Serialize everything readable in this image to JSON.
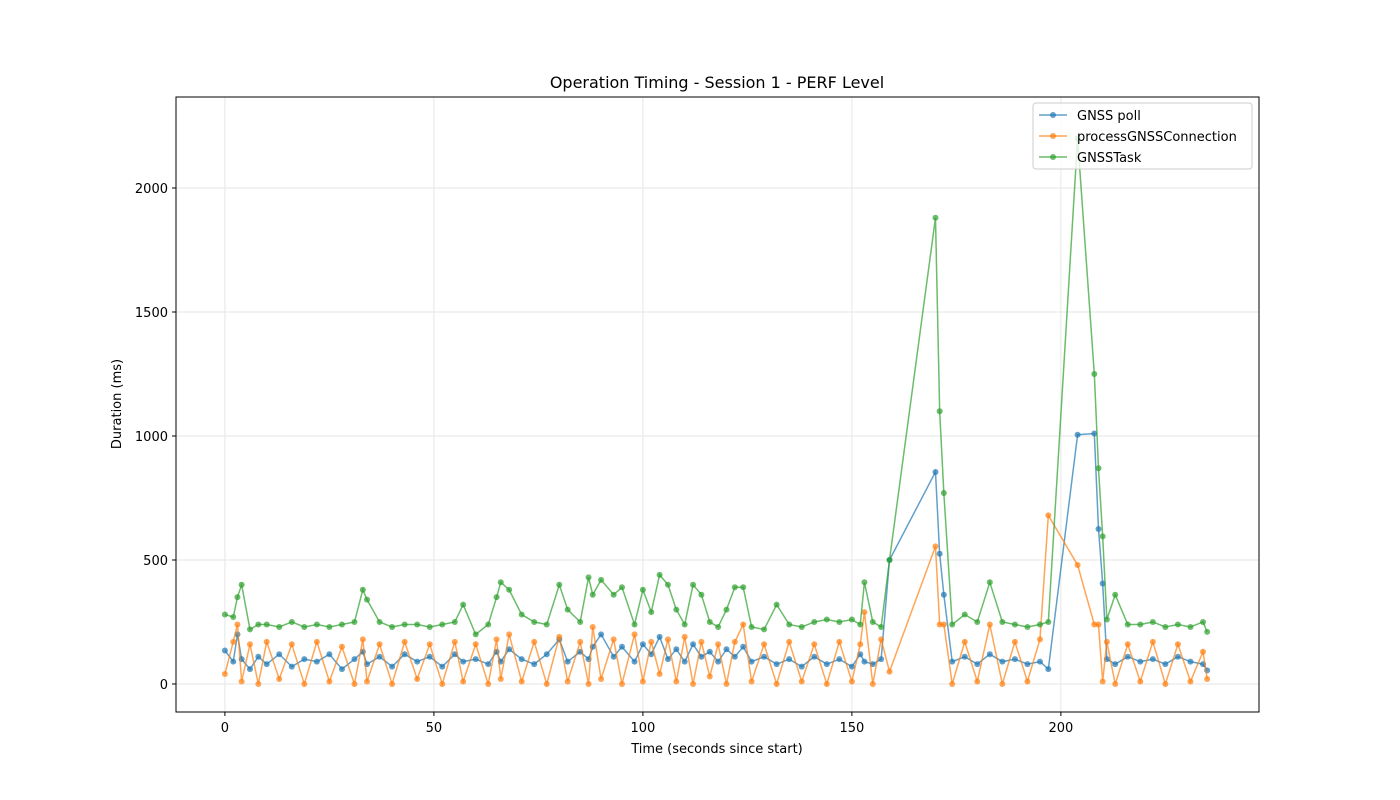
{
  "chart_data": {
    "type": "line",
    "title": "Operation Timing - Session 1 - PERF Level",
    "xlabel": "Time (seconds since start)",
    "ylabel": "Duration (ms)",
    "x": [
      0,
      2,
      3,
      4,
      6,
      8,
      10,
      13,
      16,
      19,
      22,
      25,
      28,
      31,
      33,
      34,
      37,
      40,
      43,
      46,
      49,
      52,
      55,
      57,
      60,
      63,
      65,
      66,
      68,
      71,
      74,
      77,
      80,
      82,
      85,
      87,
      88,
      90,
      93,
      95,
      98,
      100,
      102,
      104,
      106,
      108,
      110,
      112,
      114,
      116,
      118,
      120,
      122,
      124,
      126,
      129,
      132,
      135,
      138,
      141,
      144,
      147,
      150,
      152,
      153,
      155,
      157,
      159,
      170,
      171,
      172,
      174,
      177,
      180,
      183,
      186,
      189,
      192,
      195,
      197,
      204,
      208,
      209,
      210,
      211,
      213,
      216,
      219,
      222,
      225,
      228,
      231,
      234,
      235
    ],
    "series": [
      {
        "name": "GNSS poll",
        "color": "#1f77b4",
        "values": [
          135,
          90,
          200,
          100,
          60,
          110,
          80,
          120,
          70,
          100,
          90,
          120,
          60,
          100,
          130,
          80,
          110,
          70,
          120,
          90,
          110,
          70,
          120,
          90,
          100,
          80,
          130,
          90,
          140,
          100,
          80,
          120,
          180,
          90,
          130,
          100,
          150,
          200,
          110,
          150,
          90,
          160,
          120,
          190,
          100,
          140,
          90,
          160,
          110,
          130,
          90,
          140,
          110,
          150,
          90,
          110,
          80,
          100,
          70,
          110,
          80,
          100,
          70,
          120,
          90,
          80,
          100,
          500,
          855,
          525,
          360,
          90,
          110,
          80,
          120,
          90,
          100,
          80,
          90,
          60,
          1005,
          1010,
          625,
          405,
          100,
          80,
          110,
          90,
          100,
          80,
          110,
          90,
          80,
          55
        ]
      },
      {
        "name": "processGNSSConnection",
        "color": "#ff7f0e",
        "values": [
          40,
          170,
          240,
          10,
          160,
          0,
          170,
          20,
          160,
          0,
          170,
          10,
          150,
          0,
          180,
          10,
          160,
          0,
          170,
          20,
          160,
          0,
          170,
          10,
          160,
          0,
          180,
          20,
          200,
          10,
          170,
          0,
          190,
          10,
          170,
          0,
          230,
          20,
          180,
          0,
          200,
          10,
          170,
          40,
          180,
          10,
          190,
          0,
          170,
          30,
          160,
          0,
          170,
          240,
          10,
          160,
          0,
          170,
          10,
          160,
          0,
          170,
          10,
          160,
          290,
          0,
          180,
          50,
          555,
          240,
          240,
          0,
          170,
          10,
          240,
          0,
          170,
          10,
          180,
          680,
          480,
          240,
          240,
          10,
          170,
          0,
          160,
          10,
          170,
          0,
          160,
          10,
          130,
          20
        ]
      },
      {
        "name": "GNSSTask",
        "color": "#2ca02c",
        "values": [
          280,
          270,
          350,
          400,
          220,
          240,
          240,
          230,
          250,
          230,
          240,
          230,
          240,
          250,
          380,
          340,
          250,
          230,
          240,
          240,
          230,
          240,
          250,
          320,
          200,
          240,
          350,
          410,
          380,
          280,
          250,
          240,
          400,
          300,
          250,
          430,
          360,
          420,
          360,
          390,
          240,
          380,
          290,
          440,
          400,
          300,
          240,
          400,
          360,
          250,
          230,
          300,
          390,
          390,
          230,
          220,
          320,
          240,
          230,
          250,
          260,
          250,
          260,
          240,
          410,
          250,
          230,
          500,
          1880,
          1100,
          770,
          240,
          280,
          250,
          410,
          250,
          240,
          230,
          240,
          250,
          2200,
          1250,
          870,
          595,
          260,
          360,
          240,
          240,
          250,
          230,
          240,
          230,
          250,
          210
        ]
      }
    ],
    "xlim": [
      -11.7,
      247.4
    ],
    "ylim": [
      -113,
      2367
    ],
    "xticks": [
      0,
      50,
      100,
      150,
      200
    ],
    "yticks": [
      0,
      500,
      1000,
      1500,
      2000
    ],
    "grid": true,
    "legend": "upper-right"
  }
}
